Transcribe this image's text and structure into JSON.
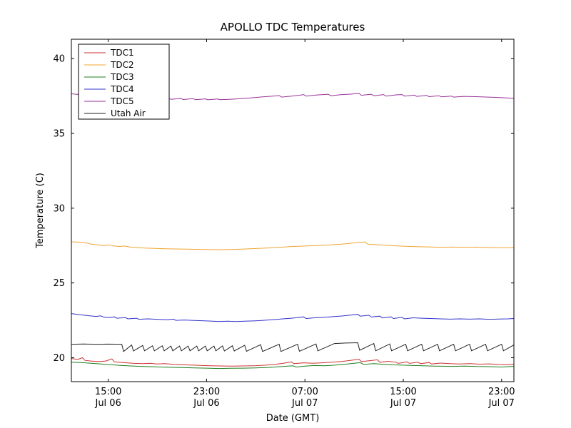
{
  "chart_data": {
    "type": "line",
    "title": "APOLLO TDC Temperatures",
    "xlabel": "Date (GMT)",
    "ylabel": "Temperature (C)",
    "xlim": [
      0,
      36
    ],
    "ylim": [
      18.4,
      41.3
    ],
    "grid": false,
    "legend_position": "upper left",
    "y_ticks": [
      20,
      25,
      30,
      35,
      40
    ],
    "x_ticks": [
      {
        "x": 3,
        "label": "15:00",
        "sub": "Jul 06"
      },
      {
        "x": 11,
        "label": "23:00",
        "sub": "Jul 06"
      },
      {
        "x": 19,
        "label": "07:00",
        "sub": "Jul 07"
      },
      {
        "x": 27,
        "label": "15:00",
        "sub": "Jul 07"
      },
      {
        "x": 35,
        "label": "23:00",
        "sub": "Jul 07"
      }
    ],
    "series": [
      {
        "name": "TDC1",
        "color": "#cc3333",
        "x": [
          0,
          0.5,
          0.9,
          1.1,
          1.6,
          2.2,
          2.8,
          3.3,
          3.5,
          4.2,
          5,
          5.8,
          6.4,
          7,
          7.6,
          8.4,
          9.2,
          10,
          11,
          12,
          13,
          14,
          15,
          15.8,
          16.5,
          17.2,
          17.9,
          18.1,
          18.9,
          19.6,
          20.4,
          21.2,
          22,
          22.8,
          23.4,
          23.6,
          24.2,
          24.9,
          25.1,
          25.8,
          26.4,
          26.6,
          27.3,
          27.5,
          28.2,
          28.4,
          29.1,
          29.3,
          30,
          30.8,
          31.6,
          32.4,
          33.2,
          34,
          34.8,
          35.5,
          36
        ],
        "y": [
          19.95,
          19.88,
          20.0,
          19.82,
          19.78,
          19.74,
          19.78,
          19.92,
          19.72,
          19.68,
          19.63,
          19.6,
          19.62,
          19.58,
          19.6,
          19.55,
          19.52,
          19.5,
          19.47,
          19.45,
          19.44,
          19.45,
          19.47,
          19.5,
          19.55,
          19.62,
          19.72,
          19.6,
          19.66,
          19.63,
          19.66,
          19.7,
          19.75,
          19.83,
          19.9,
          19.74,
          19.8,
          19.86,
          19.7,
          19.76,
          19.7,
          19.62,
          19.72,
          19.62,
          19.7,
          19.6,
          19.68,
          19.58,
          19.64,
          19.6,
          19.58,
          19.6,
          19.57,
          19.59,
          19.55,
          19.53,
          19.57
        ]
      },
      {
        "name": "TDC2",
        "color": "#f0a432",
        "x": [
          0,
          0.6,
          1.2,
          1.6,
          2.1,
          2.7,
          3.1,
          3.4,
          3.9,
          4.3,
          4.8,
          5.4,
          6,
          7,
          8,
          9,
          10,
          11,
          12,
          13,
          14,
          15,
          16,
          17,
          18,
          19,
          20,
          21,
          22,
          22.8,
          23.4,
          23.9,
          24.1,
          24.8,
          25.5,
          26.2,
          27,
          28,
          29,
          30,
          31,
          32,
          33,
          34,
          35,
          36
        ],
        "y": [
          27.75,
          27.73,
          27.68,
          27.6,
          27.55,
          27.5,
          27.55,
          27.48,
          27.44,
          27.47,
          27.4,
          27.36,
          27.33,
          27.3,
          27.28,
          27.27,
          27.25,
          27.24,
          27.22,
          27.24,
          27.27,
          27.3,
          27.34,
          27.39,
          27.44,
          27.47,
          27.5,
          27.54,
          27.6,
          27.66,
          27.72,
          27.74,
          27.6,
          27.56,
          27.52,
          27.49,
          27.46,
          27.43,
          27.41,
          27.39,
          27.4,
          27.38,
          27.4,
          27.37,
          27.35,
          27.36
        ]
      },
      {
        "name": "TDC3",
        "color": "#1e7e1e",
        "x": [
          0,
          0.8,
          1.6,
          2.4,
          3.2,
          4,
          4.8,
          5.6,
          6.4,
          7.2,
          8,
          9,
          10,
          11,
          12,
          13,
          14,
          15,
          16,
          17,
          18,
          18.3,
          19,
          19.8,
          20.6,
          21.4,
          22.2,
          23,
          23.5,
          23.8,
          24.6,
          25.4,
          26.2,
          27,
          27.8,
          28.6,
          29.4,
          30.2,
          31,
          32,
          33,
          34,
          35,
          36
        ],
        "y": [
          19.7,
          19.68,
          19.63,
          19.58,
          19.53,
          19.49,
          19.45,
          19.42,
          19.4,
          19.38,
          19.36,
          19.34,
          19.32,
          19.3,
          19.28,
          19.29,
          19.3,
          19.32,
          19.35,
          19.4,
          19.46,
          19.38,
          19.44,
          19.48,
          19.46,
          19.5,
          19.56,
          19.63,
          19.67,
          19.55,
          19.6,
          19.56,
          19.52,
          19.5,
          19.48,
          19.46,
          19.44,
          19.43,
          19.42,
          19.44,
          19.41,
          19.4,
          19.38,
          19.42
        ]
      },
      {
        "name": "TDC4",
        "color": "#3333cc",
        "x": [
          0,
          0.5,
          1,
          1.5,
          2,
          2.4,
          2.6,
          3.1,
          3.5,
          3.7,
          4.4,
          4.6,
          5.3,
          5.5,
          6.2,
          7,
          7.8,
          8.3,
          8.5,
          9.2,
          10,
          10.8,
          11.5,
          12,
          12.7,
          13.4,
          14.1,
          15,
          15.8,
          16.5,
          17.2,
          17.9,
          18.4,
          18.9,
          19.1,
          19.8,
          20.5,
          21.2,
          22,
          22.7,
          23.3,
          23.5,
          24.2,
          24.4,
          25.1,
          25.3,
          26,
          26.2,
          26.9,
          27.1,
          27.8,
          28.5,
          29.2,
          30,
          30.8,
          31.6,
          32.4,
          33.2,
          34,
          34.8,
          35.5,
          36
        ],
        "y": [
          22.95,
          22.9,
          22.85,
          22.8,
          22.76,
          22.8,
          22.72,
          22.68,
          22.73,
          22.64,
          22.68,
          22.6,
          22.64,
          22.57,
          22.6,
          22.57,
          22.54,
          22.58,
          22.5,
          22.52,
          22.49,
          22.47,
          22.44,
          22.42,
          22.44,
          22.42,
          22.44,
          22.47,
          22.51,
          22.55,
          22.6,
          22.64,
          22.68,
          22.73,
          22.62,
          22.67,
          22.7,
          22.74,
          22.79,
          22.85,
          22.9,
          22.78,
          22.84,
          22.72,
          22.78,
          22.66,
          22.73,
          22.62,
          22.7,
          22.6,
          22.67,
          22.64,
          22.62,
          22.6,
          22.58,
          22.6,
          22.58,
          22.6,
          22.57,
          22.59,
          22.6,
          22.62
        ]
      },
      {
        "name": "TDC5",
        "color": "#993399",
        "x": [
          0,
          0.7,
          1.5,
          2.5,
          3.5,
          4.5,
          5.5,
          5.9,
          6.1,
          6.9,
          7.1,
          7.9,
          8.1,
          8.9,
          9.1,
          9.9,
          10.1,
          10.9,
          11.1,
          11.9,
          12.1,
          12.8,
          13.5,
          14.5,
          15.5,
          16.4,
          16.9,
          17.1,
          17.9,
          18.5,
          18.9,
          19.1,
          19.9,
          20.9,
          21.1,
          21.9,
          22.9,
          23.4,
          23.6,
          24.4,
          24.6,
          25.4,
          25.6,
          26.4,
          26.9,
          27.1,
          27.9,
          28.1,
          28.9,
          29.1,
          29.9,
          30.1,
          30.9,
          31.1,
          31.9,
          32.9,
          33.9,
          34.9,
          35.5,
          36
        ],
        "y": [
          37.65,
          37.6,
          37.55,
          37.5,
          37.46,
          37.42,
          37.38,
          37.42,
          37.32,
          37.38,
          37.3,
          37.36,
          37.28,
          37.34,
          37.27,
          37.33,
          37.26,
          37.31,
          37.25,
          37.3,
          37.26,
          37.28,
          37.31,
          37.37,
          37.44,
          37.5,
          37.53,
          37.43,
          37.5,
          37.55,
          37.6,
          37.5,
          37.57,
          37.62,
          37.52,
          37.59,
          37.64,
          37.68,
          37.55,
          37.62,
          37.52,
          37.6,
          37.5,
          37.58,
          37.6,
          37.5,
          37.56,
          37.48,
          37.54,
          37.46,
          37.52,
          37.45,
          37.5,
          37.43,
          37.48,
          37.46,
          37.43,
          37.4,
          37.37,
          37.35
        ]
      },
      {
        "name": "Utah Air",
        "color": "#222222",
        "x": [
          0,
          1,
          2,
          3,
          4.1,
          4.25,
          4.9,
          5.05,
          5.8,
          5.95,
          6.6,
          6.75,
          7.4,
          7.55,
          8.1,
          8.25,
          8.8,
          8.95,
          9.5,
          9.65,
          10.2,
          10.35,
          10.9,
          11.05,
          11.6,
          11.75,
          12.3,
          12.45,
          13.1,
          13.25,
          14.1,
          14.25,
          15.4,
          15.55,
          16.9,
          17.05,
          18.4,
          18.55,
          19.9,
          20.05,
          21.4,
          22.3,
          23.3,
          23.45,
          24.6,
          24.75,
          25.9,
          26.05,
          27.2,
          27.35,
          28.5,
          28.65,
          29.8,
          29.95,
          31.1,
          31.25,
          32.4,
          32.55,
          33.7,
          33.85,
          35,
          35.15,
          36
        ],
        "y": [
          20.9,
          20.92,
          20.9,
          20.91,
          20.9,
          20.42,
          20.85,
          20.45,
          20.82,
          20.46,
          20.8,
          20.46,
          20.8,
          20.46,
          20.78,
          20.46,
          20.78,
          20.46,
          20.78,
          20.46,
          20.78,
          20.46,
          20.78,
          20.46,
          20.78,
          20.46,
          20.79,
          20.45,
          20.8,
          20.45,
          20.83,
          20.43,
          20.87,
          20.42,
          20.9,
          20.42,
          20.9,
          20.43,
          20.92,
          20.46,
          20.95,
          20.98,
          21.0,
          20.5,
          20.95,
          20.46,
          20.92,
          20.46,
          20.9,
          20.46,
          20.9,
          20.46,
          20.9,
          20.46,
          20.9,
          20.46,
          20.9,
          20.46,
          20.9,
          20.46,
          20.9,
          20.46,
          20.85
        ]
      }
    ]
  }
}
